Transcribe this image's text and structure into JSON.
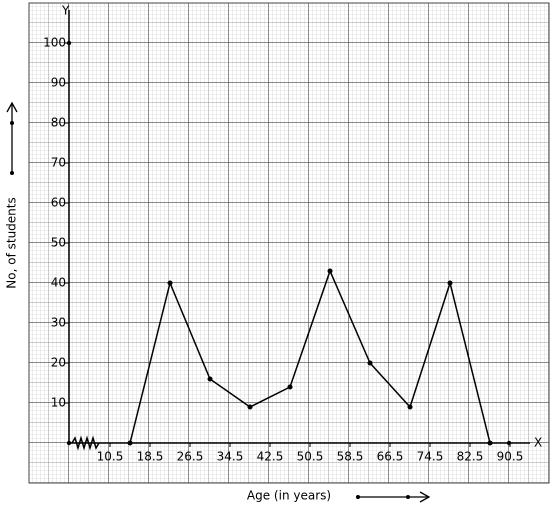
{
  "chart_data": {
    "type": "line",
    "x_label": "Age (in years)",
    "y_label": "No, of students",
    "x_axis_name": "X",
    "y_axis_name": "Y",
    "x": [
      14.5,
      22.5,
      30.5,
      38.5,
      46.5,
      54.5,
      62.5,
      70.5,
      78.5,
      86.5
    ],
    "series": [
      {
        "color": "#000000",
        "values": [
          0,
          40,
          16,
          9,
          14,
          43,
          20,
          9,
          40,
          0
        ]
      }
    ],
    "xlim": [
      2.3,
      94.5
    ],
    "xticks": [
      10.5,
      18.5,
      26.5,
      34.5,
      42.5,
      50.5,
      58.5,
      66.5,
      74.5,
      82.5,
      90.5
    ],
    "ylim": [
      0,
      100
    ],
    "yticks": [
      10,
      20,
      30,
      40,
      50,
      60,
      70,
      80,
      90,
      100
    ],
    "grid": true
  }
}
